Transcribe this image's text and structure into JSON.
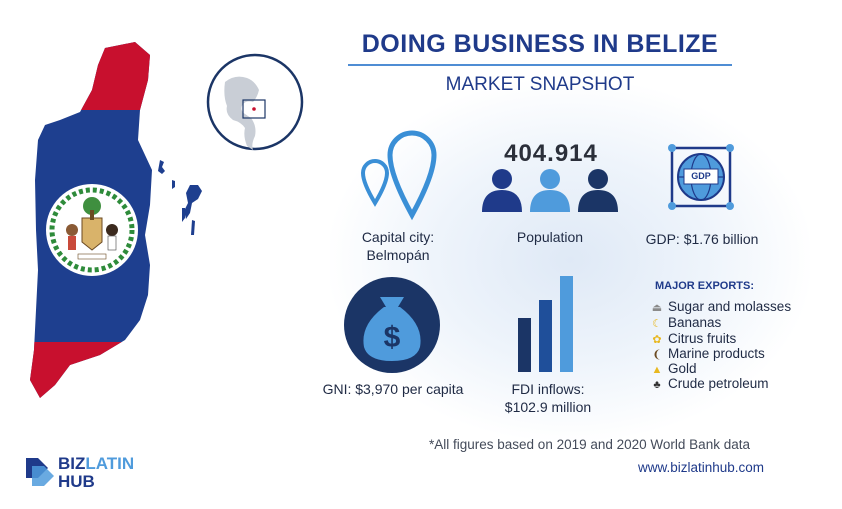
{
  "header": {
    "title": "DOING BUSINESS IN BELIZE",
    "subtitle": "MARKET SNAPSHOT"
  },
  "stats": {
    "capital_label": "Capital city:",
    "capital_value": "Belmopán",
    "population_number": "404.914",
    "population_label": "Population",
    "gdp_icon_text": "GDP",
    "gdp_label": "GDP: $1.76 billion",
    "gni_label": "GNI: $3,970 per capita",
    "fdi_label": "FDI inflows:",
    "fdi_value": "$102.9 million"
  },
  "exports": {
    "title": "MAJOR EXPORTS:",
    "items": [
      {
        "label": "Sugar and molasses",
        "icon": "sugar-icon"
      },
      {
        "label": "Bananas",
        "icon": "banana-icon"
      },
      {
        "label": "Citrus fruits",
        "icon": "citrus-icon"
      },
      {
        "label": "Marine products",
        "icon": "shrimp-icon"
      },
      {
        "label": "Gold",
        "icon": "gold-icon"
      },
      {
        "label": "Crude petroleum",
        "icon": "oil-icon"
      }
    ]
  },
  "footer": {
    "footnote": "*All figures based on 2019 and 2020 World Bank data",
    "website": "www.bizlatinhub.com"
  },
  "logo": {
    "biz": "BIZ",
    "latin": "LATIN",
    "hub": "HUB"
  },
  "colors": {
    "navy": "#1f3a8a",
    "flag_blue": "#1e3f8f",
    "flag_red": "#c8102e",
    "light_blue": "#4f9bdc",
    "dark_navy": "#1b3566",
    "accent_blue": "#3a8fd6"
  }
}
